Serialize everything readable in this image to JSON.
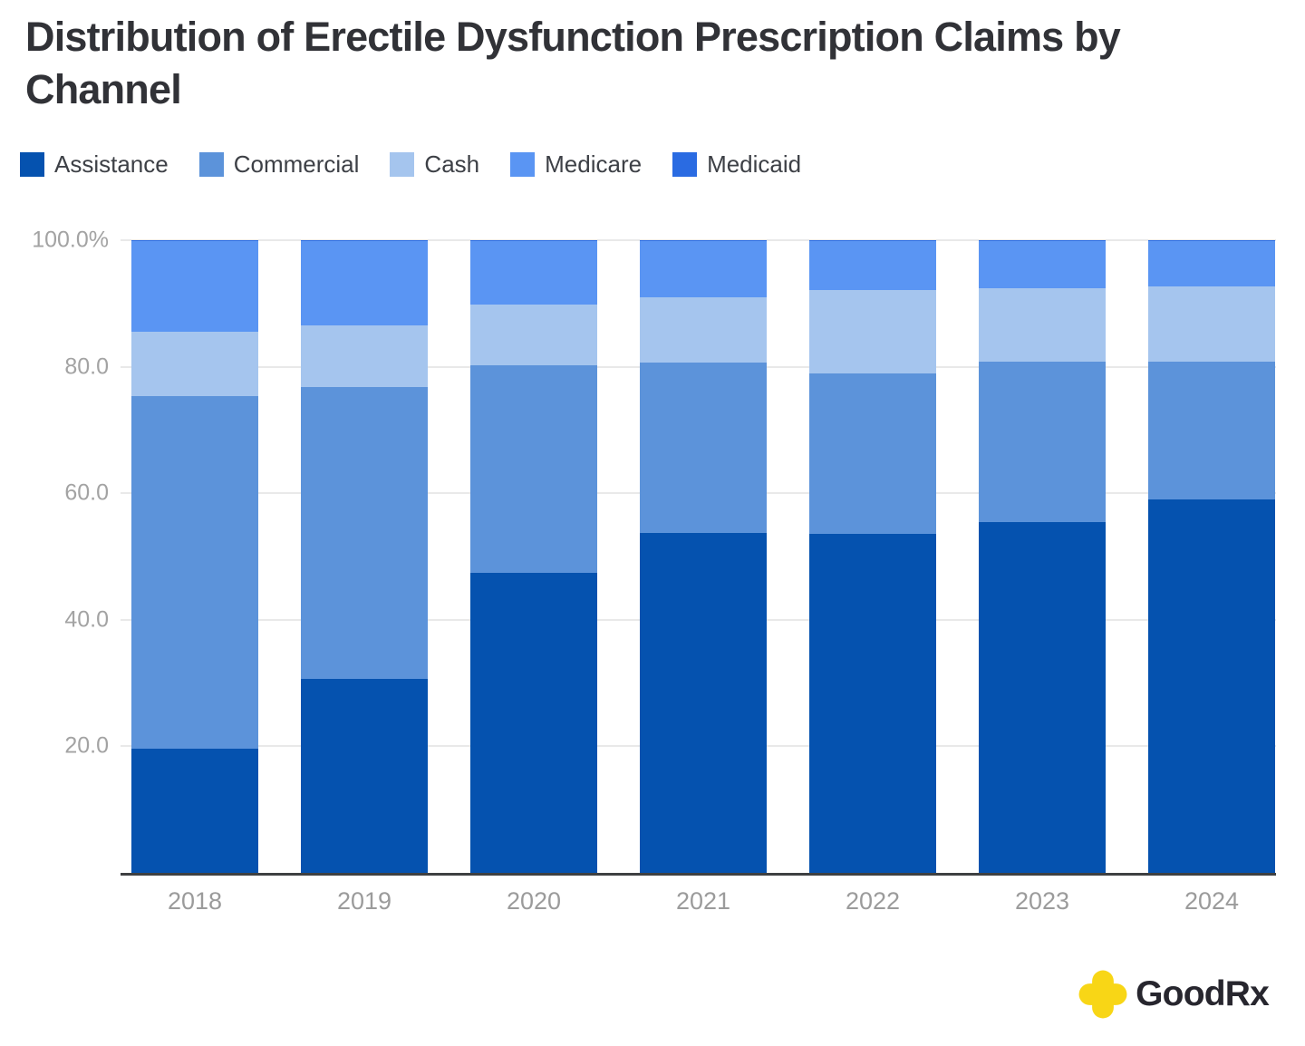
{
  "title": "Distribution of Erectile Dysfunction Prescription Claims by Channel",
  "chart_data": {
    "type": "bar",
    "stacked": true,
    "percent_stacked": true,
    "title": "Distribution of Erectile Dysfunction Prescription Claims by Channel",
    "categories": [
      "2018",
      "2019",
      "2020",
      "2021",
      "2022",
      "2023",
      "2024"
    ],
    "series": [
      {
        "name": "Assistance",
        "color": "#0552AF",
        "values": [
          19.7,
          30.6,
          47.4,
          53.7,
          53.6,
          55.5,
          59.0
        ]
      },
      {
        "name": "Commercial",
        "color": "#5C93DA",
        "values": [
          55.7,
          46.2,
          32.9,
          26.9,
          25.3,
          25.3,
          21.8
        ]
      },
      {
        "name": "Cash",
        "color": "#A5C5EE",
        "values": [
          10.2,
          9.7,
          9.6,
          10.4,
          13.2,
          11.6,
          11.9
        ]
      },
      {
        "name": "Medicare",
        "color": "#5A95F3",
        "values": [
          14.2,
          13.3,
          9.9,
          8.8,
          7.7,
          7.4,
          7.1
        ]
      },
      {
        "name": "Medicaid",
        "color": "#2A6BE2",
        "values": [
          0.2,
          0.2,
          0.2,
          0.2,
          0.2,
          0.2,
          0.2
        ]
      }
    ],
    "xlabel": "",
    "ylabel": "",
    "ylim": [
      0,
      100
    ],
    "y_ticks": [
      {
        "value": 100,
        "label": "100.0%"
      },
      {
        "value": 80,
        "label": "80.0"
      },
      {
        "value": 60,
        "label": "60.0"
      },
      {
        "value": 40,
        "label": "40.0"
      },
      {
        "value": 20,
        "label": "20.0"
      }
    ],
    "grid": true,
    "legend_position": "top"
  },
  "footer": {
    "brand": "GoodRx",
    "logo_color": "#F8D616"
  }
}
